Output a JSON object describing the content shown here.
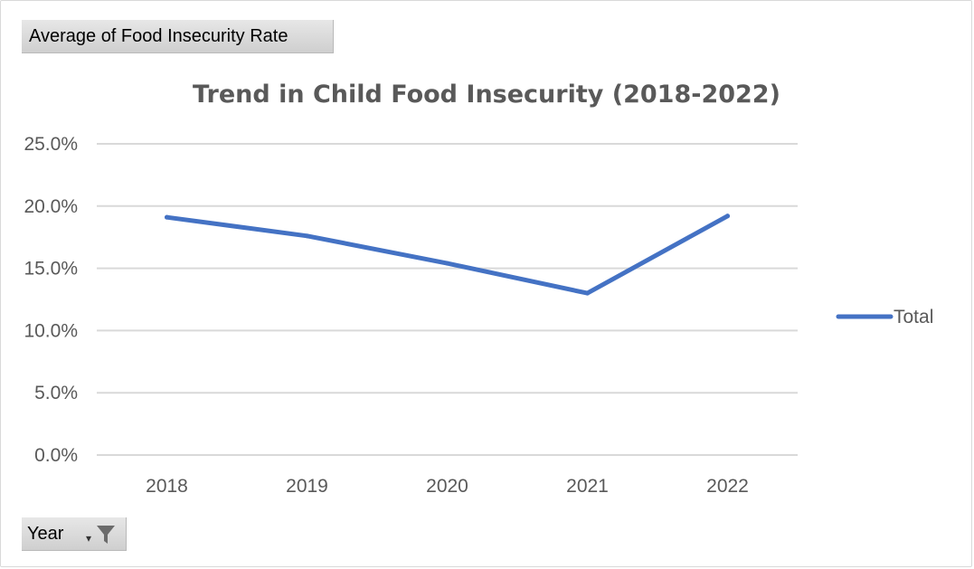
{
  "value_field_button": {
    "label": "Average of Food Insecurity Rate"
  },
  "axis_field_button": {
    "label": "Year",
    "icon": "filter-icon"
  },
  "chart_data": {
    "type": "line",
    "title": "Trend in Child Food Insecurity (2018-2022)",
    "xlabel": "",
    "ylabel": "",
    "categories": [
      "2018",
      "2019",
      "2020",
      "2021",
      "2022"
    ],
    "series": [
      {
        "name": "Total",
        "values": [
          0.191,
          0.176,
          0.154,
          0.13,
          0.192
        ],
        "color": "#4472C4"
      }
    ],
    "ylim": [
      0,
      0.25
    ],
    "yticks": [
      0,
      0.05,
      0.1,
      0.15,
      0.2,
      0.25
    ],
    "ytick_labels": [
      "0.0%",
      "5.0%",
      "10.0%",
      "15.0%",
      "20.0%",
      "25.0%"
    ],
    "grid": true,
    "legend_position": "right",
    "gridline_color": "#d9d9d9"
  }
}
